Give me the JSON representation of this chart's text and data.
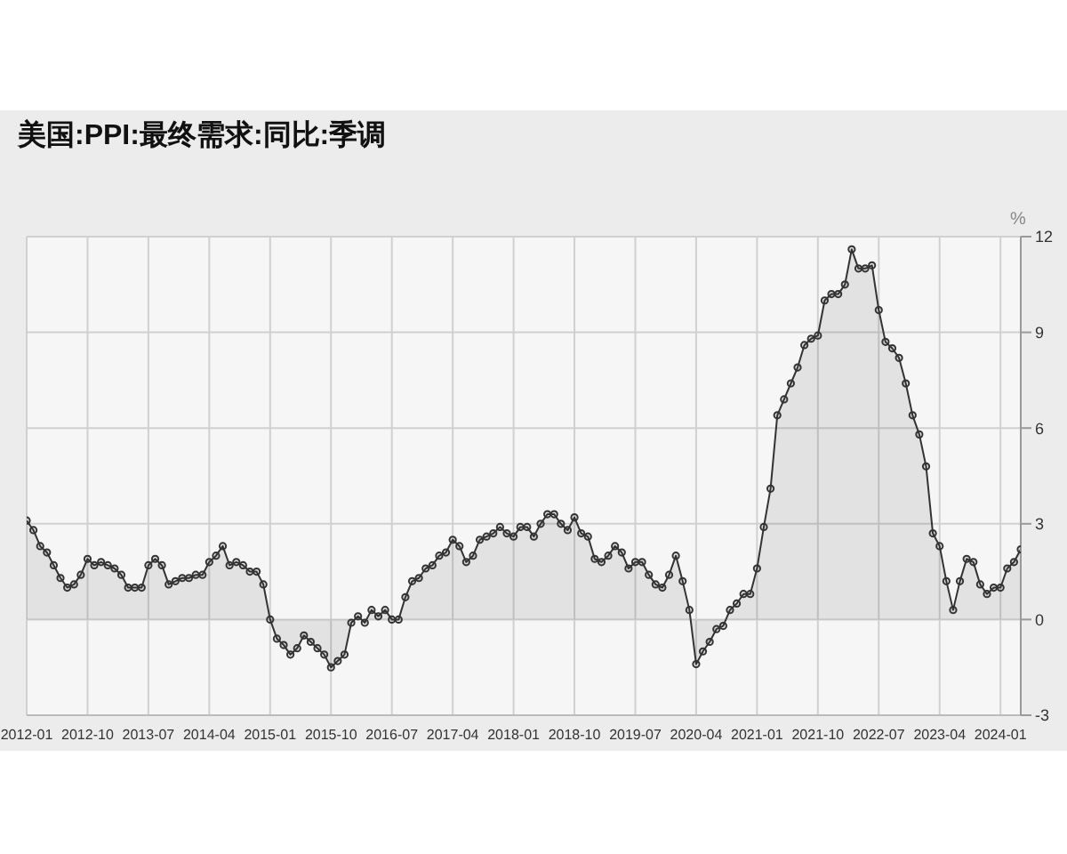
{
  "chart_data": {
    "type": "area",
    "title": "美国:PPI:最终需求:同比:季调",
    "ylabel": "%",
    "x": [
      "2012-01",
      "2012-02",
      "2012-03",
      "2012-04",
      "2012-05",
      "2012-06",
      "2012-07",
      "2012-08",
      "2012-09",
      "2012-10",
      "2012-11",
      "2012-12",
      "2013-01",
      "2013-02",
      "2013-03",
      "2013-04",
      "2013-05",
      "2013-06",
      "2013-07",
      "2013-08",
      "2013-09",
      "2013-10",
      "2013-11",
      "2013-12",
      "2014-01",
      "2014-02",
      "2014-03",
      "2014-04",
      "2014-05",
      "2014-06",
      "2014-07",
      "2014-08",
      "2014-09",
      "2014-10",
      "2014-11",
      "2014-12",
      "2015-01",
      "2015-02",
      "2015-03",
      "2015-04",
      "2015-05",
      "2015-06",
      "2015-07",
      "2015-08",
      "2015-09",
      "2015-10",
      "2015-11",
      "2015-12",
      "2016-01",
      "2016-02",
      "2016-03",
      "2016-04",
      "2016-05",
      "2016-06",
      "2016-07",
      "2016-08",
      "2016-09",
      "2016-10",
      "2016-11",
      "2016-12",
      "2017-01",
      "2017-02",
      "2017-03",
      "2017-04",
      "2017-05",
      "2017-06",
      "2017-07",
      "2017-08",
      "2017-09",
      "2017-10",
      "2017-11",
      "2017-12",
      "2018-01",
      "2018-02",
      "2018-03",
      "2018-04",
      "2018-05",
      "2018-06",
      "2018-07",
      "2018-08",
      "2018-09",
      "2018-10",
      "2018-11",
      "2018-12",
      "2019-01",
      "2019-02",
      "2019-03",
      "2019-04",
      "2019-05",
      "2019-06",
      "2019-07",
      "2019-08",
      "2019-09",
      "2019-10",
      "2019-11",
      "2019-12",
      "2020-01",
      "2020-02",
      "2020-03",
      "2020-04",
      "2020-05",
      "2020-06",
      "2020-07",
      "2020-08",
      "2020-09",
      "2020-10",
      "2020-11",
      "2020-12",
      "2021-01",
      "2021-02",
      "2021-03",
      "2021-04",
      "2021-05",
      "2021-06",
      "2021-07",
      "2021-08",
      "2021-09",
      "2021-10",
      "2021-11",
      "2021-12",
      "2022-01",
      "2022-02",
      "2022-03",
      "2022-04",
      "2022-05",
      "2022-06",
      "2022-07",
      "2022-08",
      "2022-09",
      "2022-10",
      "2022-11",
      "2022-12",
      "2023-01",
      "2023-02",
      "2023-03",
      "2023-04",
      "2023-05",
      "2023-06",
      "2023-07",
      "2023-08",
      "2023-09",
      "2023-10",
      "2023-11",
      "2023-12",
      "2024-01",
      "2024-02",
      "2024-03",
      "2024-04"
    ],
    "series": [
      {
        "color": "#333333",
        "values": [
          3.1,
          2.8,
          2.3,
          2.1,
          1.7,
          1.3,
          1.0,
          1.1,
          1.4,
          1.9,
          1.7,
          1.8,
          1.7,
          1.6,
          1.4,
          1.0,
          1.0,
          1.0,
          1.7,
          1.9,
          1.7,
          1.1,
          1.2,
          1.3,
          1.3,
          1.4,
          1.4,
          1.8,
          2.0,
          2.3,
          1.7,
          1.8,
          1.7,
          1.5,
          1.5,
          1.1,
          0.0,
          -0.6,
          -0.8,
          -1.1,
          -0.9,
          -0.5,
          -0.7,
          -0.9,
          -1.1,
          -1.5,
          -1.3,
          -1.1,
          -0.1,
          0.1,
          -0.1,
          0.3,
          0.1,
          0.3,
          0.0,
          0.0,
          0.7,
          1.2,
          1.3,
          1.6,
          1.7,
          2.0,
          2.1,
          2.5,
          2.3,
          1.8,
          2.0,
          2.5,
          2.6,
          2.7,
          2.9,
          2.7,
          2.6,
          2.9,
          2.9,
          2.6,
          3.0,
          3.3,
          3.3,
          3.0,
          2.8,
          3.2,
          2.7,
          2.6,
          1.9,
          1.8,
          2.0,
          2.3,
          2.1,
          1.6,
          1.8,
          1.8,
          1.4,
          1.1,
          1.0,
          1.4,
          2.0,
          1.2,
          0.3,
          -1.4,
          -1.0,
          -0.7,
          -0.3,
          -0.2,
          0.3,
          0.5,
          0.8,
          0.8,
          1.6,
          2.9,
          4.1,
          6.4,
          6.9,
          7.4,
          7.9,
          8.6,
          8.8,
          8.9,
          10.0,
          10.2,
          10.2,
          10.5,
          11.6,
          11.0,
          11.0,
          11.1,
          9.7,
          8.7,
          8.5,
          8.2,
          7.4,
          6.4,
          5.8,
          4.8,
          2.7,
          2.3,
          1.2,
          0.3,
          1.2,
          1.9,
          1.8,
          1.1,
          0.8,
          1.0,
          1.0,
          1.6,
          1.8,
          2.2
        ]
      }
    ],
    "xlim": [
      "2012-01",
      "2024-04"
    ],
    "xticks": [
      "2012-01",
      "2012-10",
      "2013-07",
      "2014-04",
      "2015-01",
      "2015-10",
      "2016-07",
      "2017-04",
      "2018-01",
      "2018-10",
      "2019-07",
      "2020-04",
      "2021-01",
      "2021-10",
      "2022-07",
      "2023-04",
      "2024-01"
    ],
    "ylim": [
      -3,
      12
    ],
    "yticks": [
      -3,
      0,
      3,
      6,
      9,
      12
    ],
    "grid": true,
    "marker": "circle",
    "line_style": "solid"
  }
}
